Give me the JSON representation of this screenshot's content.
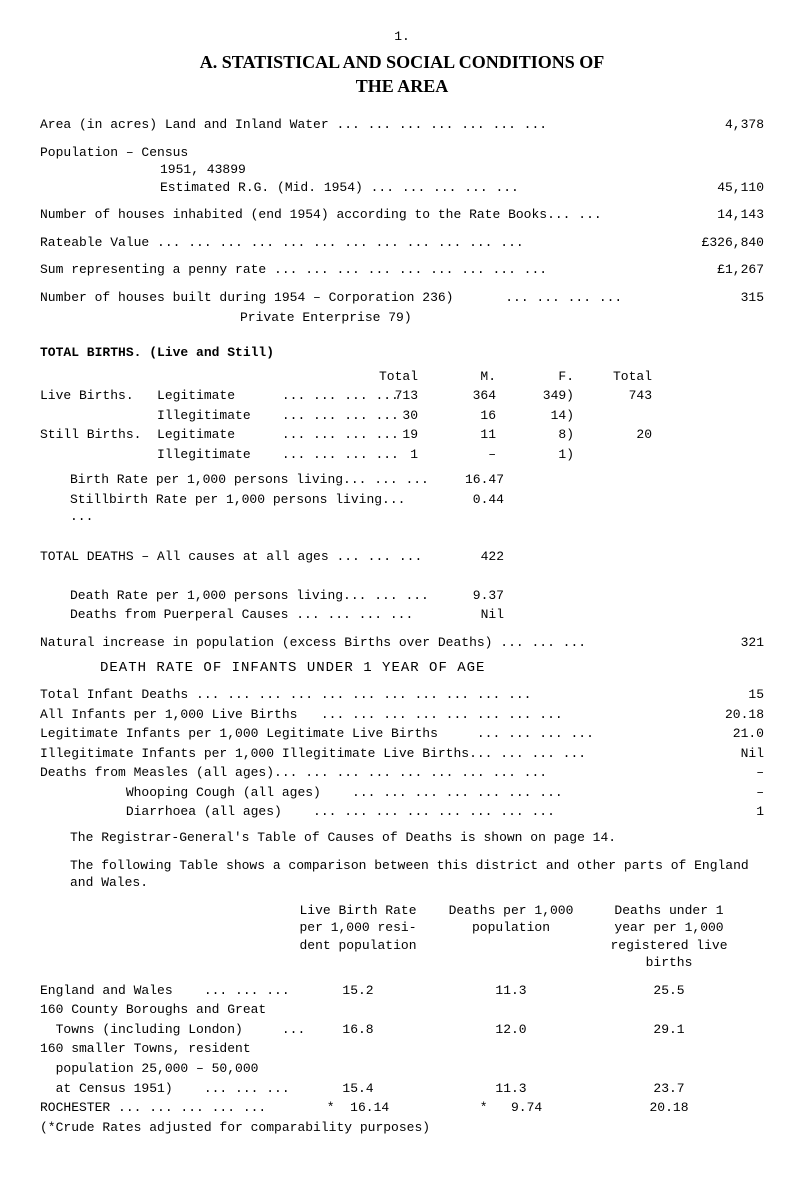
{
  "page_number": "1.",
  "title": "A.   STATISTICAL AND SOCIAL CONDITIONS OF\nTHE AREA",
  "lines": {
    "area": {
      "label": "Area (in acres) Land and Inland Water     ... ... ... ... ... ... ...",
      "value": "4,378"
    },
    "pop_header": "Population – Census",
    "pop_1951": "1951, 43899",
    "pop_est": {
      "label": "Estimated R.G. (Mid. 1954)      ... ... ... ... ...",
      "value": "45,110"
    },
    "houses_inhabited": {
      "label": "Number of houses inhabited (end 1954) according to the Rate Books... ...",
      "value": "14,143"
    },
    "rateable": {
      "label": "Rateable Value ... ... ... ... ... ... ... ... ... ... ... ...",
      "value": "£326,840"
    },
    "penny_rate": {
      "label": "Sum representing a penny rate ... ... ... ... ... ... ... ... ...",
      "value": "£1,267"
    },
    "houses_built": {
      "label_a": "Number of houses built during 1954 – Corporation 236)",
      "label_b": "Private Enterprise  79)",
      "dots": "... ... ... ...",
      "value": "315"
    }
  },
  "total_births_heading": "TOTAL BIRTHS.   (Live and Still)",
  "births_table": {
    "headers": [
      "",
      "Total",
      "M.",
      "F.",
      "Total"
    ],
    "rows": [
      [
        "Live Births.   Legitimate      ... ... ... ...",
        "713",
        "364",
        "349)",
        "743"
      ],
      [
        "               Illegitimate    ... ... ... ...",
        "30",
        "16",
        "14)",
        ""
      ],
      [
        "Still Births.  Legitimate      ... ... ... ...",
        "19",
        "11",
        "8)",
        "20"
      ],
      [
        "               Illegitimate    ... ... ... ...",
        "1",
        "–",
        "1)",
        ""
      ]
    ]
  },
  "rates_block": [
    [
      "Birth Rate per 1,000 persons living... ... ...",
      "16.47"
    ],
    [
      "Stillbirth Rate per 1,000 persons living... ...",
      "0.44"
    ],
    [
      "",
      ""
    ],
    [
      "TOTAL DEATHS – All causes at all ages    ... ... ...",
      "422"
    ],
    [
      "",
      ""
    ],
    [
      "Death Rate per 1,000 persons living... ... ...",
      "9.37"
    ],
    [
      "Deaths from Puerperal Causes   ... ... ... ...",
      "Nil"
    ]
  ],
  "natural_increase": {
    "label": "Natural increase in population (excess Births over Deaths)   ... ... ...",
    "value": "321"
  },
  "death_rate_title": "DEATH RATE OF INFANTS UNDER 1 YEAR OF AGE",
  "infant_rows": [
    [
      "Total Infant Deaths ... ... ... ... ... ... ... ... ... ... ...",
      "15"
    ],
    [
      "All Infants per 1,000 Live Births   ... ... ... ... ... ... ... ...",
      "20.18"
    ],
    [
      "Legitimate Infants per 1,000 Legitimate Live Births     ... ... ... ...",
      "21.0"
    ],
    [
      "Illegitimate Infants per 1,000 Illegitimate Live Births... ... ... ...",
      "Nil"
    ],
    [
      "Deaths from Measles (all ages)... ... ... ... ... ... ... ... ...",
      "–"
    ],
    [
      "           Whooping Cough (all ages)    ... ... ... ... ... ... ...",
      "–"
    ],
    [
      "           Diarrhoea (all ages)    ... ... ... ... ... ... ... ...",
      "1"
    ]
  ],
  "registrar_line": "The Registrar-General's Table of Causes of Deaths is shown on page 14.",
  "comparison_para": "The following Table shows a comparison between this district and other parts of England and Wales.",
  "stats_table": {
    "headers": [
      "",
      "Live Birth Rate\nper 1,000 resi-\ndent population",
      "Deaths per 1,000\npopulation",
      "Deaths under 1\nyear per 1,000\nregistered live\nbirths"
    ],
    "rows": [
      [
        "England and Wales    ... ... ...",
        "15.2",
        "11.3",
        "25.5"
      ],
      [
        "160 County Boroughs and Great",
        "",
        "",
        ""
      ],
      [
        "  Towns (including London)     ...",
        "16.8",
        "12.0",
        "29.1"
      ],
      [
        "160 smaller Towns, resident",
        "",
        "",
        ""
      ],
      [
        "  population 25,000 – 50,000",
        "",
        "",
        ""
      ],
      [
        "  at Census 1951)    ... ... ...",
        "15.4",
        "11.3",
        "23.7"
      ],
      [
        "ROCHESTER ... ... ... ... ...",
        "*  16.14",
        "*   9.74",
        "20.18"
      ],
      [
        "(*Crude Rates adjusted for comparability purposes)",
        "",
        "",
        ""
      ]
    ]
  }
}
